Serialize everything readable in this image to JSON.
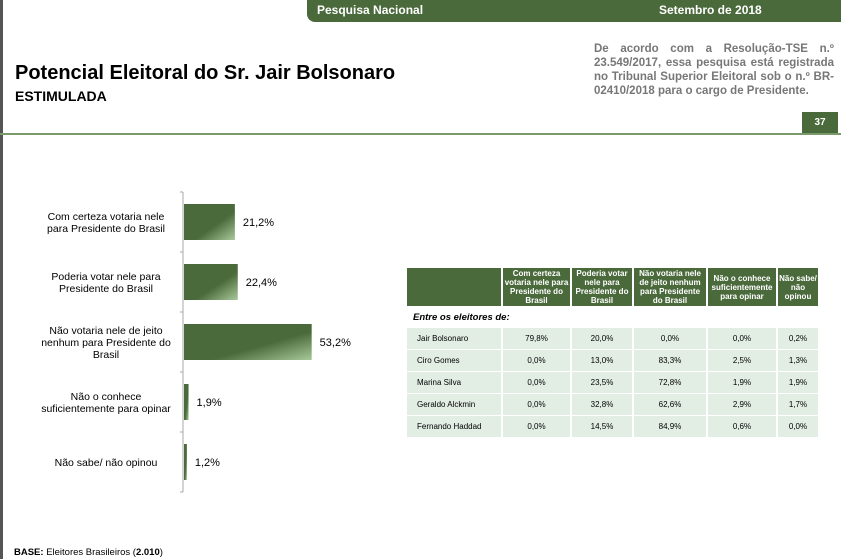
{
  "header": {
    "left": "Pesquisa Nacional",
    "right": "Setembro de 2018"
  },
  "title": "Potencial Eleitoral do Sr. Jair Bolsonaro",
  "subtitle": "ESTIMULADA",
  "note": "De acordo com a Resolução-TSE n.º 23.549/2017, essa pesquisa está registrada no Tribunal Superior Eleitoral sob o n.º BR-02410/2018 para o cargo de Presidente.",
  "page_number": "37",
  "base": {
    "label": "BASE:",
    "text": " Eleitores Brasileiros (",
    "n": "2.010",
    "close": ")"
  },
  "chart_data": {
    "type": "bar",
    "orientation": "horizontal",
    "categories": [
      "Com certeza votaria nele para Presidente do Brasil",
      "Poderia votar nele para Presidente do Brasil",
      "Não votaria nele de jeito nenhum para Presidente do Brasil",
      "Não o conhece suficientemente para opinar",
      "Não sabe/ não opinou"
    ],
    "values": [
      21.2,
      22.4,
      53.2,
      1.9,
      1.2
    ],
    "labels": [
      "21,2%",
      "22,4%",
      "53,2%",
      "1,9%",
      "1,2%"
    ],
    "bar_color": "#4b6a3c"
  },
  "table": {
    "headers": [
      "",
      "Com certeza votaria nele para Presidente do Brasil",
      "Poderia votar nele para Presidente do Brasil",
      "Não votaria nele de jeito nenhum para Presidente do Brasil",
      "Não o conhece suficientemente para opinar",
      "Não sabe/ não opinou"
    ],
    "section": "Entre os eleitores de:",
    "rows": [
      [
        "Jair Bolsonaro",
        "79,8%",
        "20,0%",
        "0,0%",
        "0,0%",
        "0,2%"
      ],
      [
        "Ciro Gomes",
        "0,0%",
        "13,0%",
        "83,3%",
        "2,5%",
        "1,3%"
      ],
      [
        "Marina Silva",
        "0,0%",
        "23,5%",
        "72,8%",
        "1,9%",
        "1,9%"
      ],
      [
        "Geraldo Alckmin",
        "0,0%",
        "32,8%",
        "62,6%",
        "2,9%",
        "1,7%"
      ],
      [
        "Fernando Haddad",
        "0,0%",
        "14,5%",
        "84,9%",
        "0,6%",
        "0,0%"
      ]
    ]
  }
}
